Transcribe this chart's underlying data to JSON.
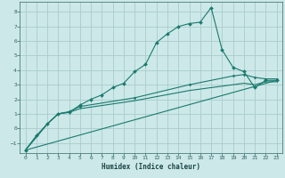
{
  "title": "",
  "xlabel": "Humidex (Indice chaleur)",
  "ylabel": "",
  "bg_color": "#cce8e8",
  "grid_color": "#aacccc",
  "line_color": "#1a7a6e",
  "xlim": [
    -0.5,
    23.5
  ],
  "ylim": [
    -1.7,
    8.7
  ],
  "xticks": [
    0,
    1,
    2,
    3,
    4,
    5,
    6,
    7,
    8,
    9,
    10,
    11,
    12,
    13,
    14,
    15,
    16,
    17,
    18,
    19,
    20,
    21,
    22,
    23
  ],
  "yticks": [
    -1,
    0,
    1,
    2,
    3,
    4,
    5,
    6,
    7,
    8
  ],
  "curve1_x": [
    0,
    1,
    2,
    3,
    4,
    5,
    6,
    7,
    8,
    9,
    10,
    11,
    12,
    13,
    14,
    15,
    16,
    17,
    18,
    19,
    20,
    21,
    22,
    23
  ],
  "curve1_y": [
    -1.5,
    -0.5,
    0.3,
    1.0,
    1.1,
    1.6,
    2.0,
    2.3,
    2.8,
    3.1,
    3.9,
    4.4,
    5.9,
    6.5,
    7.0,
    7.2,
    7.3,
    8.3,
    5.4,
    4.2,
    3.9,
    2.8,
    3.3,
    3.3
  ],
  "curve2_x": [
    0,
    2,
    3,
    4,
    5,
    10,
    15,
    19,
    20,
    21,
    22,
    23
  ],
  "curve2_y": [
    -1.5,
    0.3,
    1.0,
    1.15,
    1.5,
    2.1,
    3.0,
    3.6,
    3.7,
    3.5,
    3.4,
    3.4
  ],
  "curve3_x": [
    0,
    2,
    3,
    4,
    5,
    10,
    15,
    20,
    21,
    22,
    23
  ],
  "curve3_y": [
    -1.5,
    0.3,
    1.0,
    1.1,
    1.35,
    1.9,
    2.6,
    3.1,
    3.0,
    3.2,
    3.2
  ],
  "curve4_x": [
    0,
    23
  ],
  "curve4_y": [
    -1.5,
    3.3
  ]
}
